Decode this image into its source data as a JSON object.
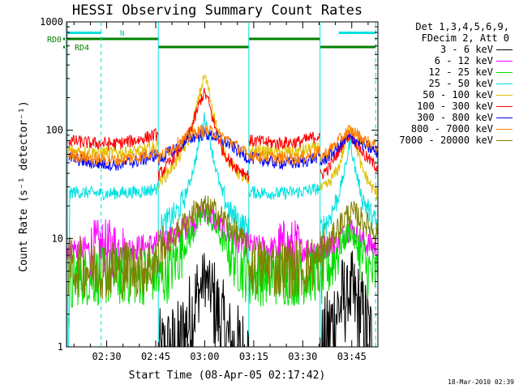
{
  "chart_data": {
    "type": "line",
    "title": "HESSI Observing Summary Count Rates",
    "xlabel": "Start Time (08-Apr-05 02:17:42)",
    "ylabel": "Count Rate (s⁻¹ detector⁻¹)",
    "yscale": "log",
    "ylim": [
      1,
      1000
    ],
    "xlim_minutes": [
      17.7,
      113.0
    ],
    "y_ticks": [
      "1",
      "10",
      "100",
      "1000"
    ],
    "x_ticks": [
      {
        "label": "02:30",
        "min": 30
      },
      {
        "label": "02:45",
        "min": 45
      },
      {
        "label": "03:00",
        "min": 60
      },
      {
        "label": "03:15",
        "min": 75
      },
      {
        "label": "03:30",
        "min": 90
      },
      {
        "label": "03:45",
        "min": 105
      }
    ],
    "legend": {
      "header_lines": [
        "Det 1,3,4,5,6,9,",
        "FDecim 2, Att 0"
      ],
      "position": "right, outside plot"
    },
    "series": [
      {
        "name": "3 - 6 keV",
        "color": "#000000",
        "segments": [
          [
            [
              45.8,
              0.8
            ],
            [
              52,
              1.0
            ],
            [
              56,
              2.0
            ],
            [
              60,
              4.5
            ],
            [
              64,
              2.0
            ],
            [
              68,
              1.0
            ],
            [
              73.5,
              0.8
            ]
          ],
          [
            [
              95.3,
              0.8
            ],
            [
              100,
              2.0
            ],
            [
              104,
              3.2
            ],
            [
              108,
              2.0
            ],
            [
              112.2,
              0.9
            ]
          ]
        ]
      },
      {
        "name": "6 - 12 keV",
        "color": "#ff00ff",
        "segments": [
          [
            [
              17.9,
              8.2
            ],
            [
              25,
              8.0
            ],
            [
              35,
              8.0
            ],
            [
              42,
              8.5
            ],
            [
              45.8,
              9.0
            ]
          ],
          [
            [
              45.8,
              9.0
            ],
            [
              50,
              10.5
            ],
            [
              55,
              13
            ],
            [
              59,
              17
            ],
            [
              60.5,
              18
            ],
            [
              63,
              15
            ],
            [
              67,
              11
            ],
            [
              72,
              9.0
            ],
            [
              75,
              8.3
            ],
            [
              82,
              8.0
            ],
            [
              89,
              8.0
            ],
            [
              95.3,
              8.2
            ]
          ],
          [
            [
              95.3,
              8.2
            ],
            [
              100,
              9.0
            ],
            [
              103,
              11
            ],
            [
              104.5,
              13
            ],
            [
              106,
              11
            ],
            [
              109,
              9.0
            ],
            [
              113,
              8.3
            ]
          ]
        ]
      },
      {
        "name": "12 - 25 keV",
        "color": "#00e000",
        "segments": [
          [
            [
              18.3,
              2.0
            ],
            [
              19,
              3.0
            ],
            [
              20,
              4.5
            ],
            [
              30,
              4.5
            ],
            [
              40,
              4.5
            ],
            [
              45.8,
              4.8
            ]
          ],
          [
            [
              45.8,
              4.0
            ],
            [
              48,
              4.5
            ],
            [
              52,
              7
            ],
            [
              56,
              11
            ],
            [
              59,
              16
            ],
            [
              60.5,
              18
            ],
            [
              62,
              15
            ],
            [
              66,
              9
            ],
            [
              70,
              6
            ],
            [
              73.5,
              4.5
            ]
          ],
          [
            [
              73.5,
              4.5
            ],
            [
              82,
              4.5
            ],
            [
              89,
              4.5
            ],
            [
              95.3,
              5.0
            ]
          ],
          [
            [
              95.3,
              4.0
            ],
            [
              99,
              6
            ],
            [
              102,
              9
            ],
            [
              104.5,
              12
            ],
            [
              107,
              8
            ],
            [
              110,
              5
            ],
            [
              113,
              4.5
            ]
          ]
        ]
      },
      {
        "name": "25 - 50 keV",
        "color": "#00e0e0",
        "segments": [
          [
            [
              18.3,
              1.0
            ],
            [
              18.7,
              25
            ],
            [
              19.5,
              27
            ],
            [
              30,
              26
            ],
            [
              40,
              27
            ],
            [
              45.8,
              29
            ]
          ],
          [
            [
              45.8,
              12
            ],
            [
              48,
              14
            ],
            [
              52,
              18
            ],
            [
              55,
              30
            ],
            [
              57,
              50
            ],
            [
              59,
              100
            ],
            [
              60,
              135
            ],
            [
              61,
              100
            ],
            [
              63,
              50
            ],
            [
              65,
              28
            ],
            [
              68,
              17
            ],
            [
              73.5,
              12
            ]
          ],
          [
            [
              73.5,
              27
            ],
            [
              82,
              26
            ],
            [
              89,
              27
            ],
            [
              95.3,
              29
            ]
          ],
          [
            [
              95.3,
              12
            ],
            [
              98,
              15
            ],
            [
              101,
              25
            ],
            [
              103,
              45
            ],
            [
              104.5,
              80
            ],
            [
              106,
              45
            ],
            [
              108,
              25
            ],
            [
              111,
              16
            ],
            [
              113,
              13
            ]
          ]
        ]
      },
      {
        "name": "50 - 100 keV",
        "color": "#e0c000",
        "segments": [
          [
            [
              18.3,
              65
            ],
            [
              25,
              63
            ],
            [
              35,
              62
            ],
            [
              42,
              66
            ],
            [
              45.8,
              72
            ]
          ],
          [
            [
              45.8,
              32
            ],
            [
              48,
              38
            ],
            [
              52,
              55
            ],
            [
              55,
              80
            ],
            [
              57,
              140
            ],
            [
              59,
              250
            ],
            [
              60,
              320
            ],
            [
              61,
              250
            ],
            [
              63,
              130
            ],
            [
              65,
              75
            ],
            [
              68,
              48
            ],
            [
              73.5,
              32
            ]
          ],
          [
            [
              73.5,
              65
            ],
            [
              82,
              63
            ],
            [
              89,
              64
            ],
            [
              95.3,
              70
            ]
          ],
          [
            [
              95.3,
              28
            ],
            [
              98,
              32
            ],
            [
              101,
              45
            ],
            [
              103,
              75
            ],
            [
              104.5,
              110
            ],
            [
              106,
              80
            ],
            [
              108,
              45
            ],
            [
              111,
              30
            ],
            [
              113,
              25
            ]
          ]
        ]
      },
      {
        "name": "100 - 300 keV",
        "color": "#ff0000",
        "segments": [
          [
            [
              18.3,
              80
            ],
            [
              25,
              76
            ],
            [
              33,
              75
            ],
            [
              40,
              82
            ],
            [
              45.8,
              92
            ]
          ],
          [
            [
              45.8,
              38
            ],
            [
              48,
              45
            ],
            [
              52,
              65
            ],
            [
              55,
              90
            ],
            [
              57,
              130
            ],
            [
              59,
              200
            ],
            [
              60,
              220
            ],
            [
              61,
              190
            ],
            [
              63,
              110
            ],
            [
              65,
              70
            ],
            [
              68,
              50
            ],
            [
              73.5,
              38
            ]
          ],
          [
            [
              73.5,
              80
            ],
            [
              82,
              76
            ],
            [
              89,
              78
            ],
            [
              95.3,
              90
            ]
          ],
          [
            [
              95.3,
              38
            ],
            [
              98,
              45
            ],
            [
              101,
              65
            ],
            [
              103,
              85
            ],
            [
              104.5,
              90
            ],
            [
              106,
              80
            ],
            [
              109,
              58
            ],
            [
              113,
              45
            ]
          ]
        ]
      },
      {
        "name": "300 - 800 keV",
        "color": "#0000ff",
        "segments": [
          [
            [
              18.3,
              56
            ],
            [
              25,
              50
            ],
            [
              33,
              48
            ],
            [
              40,
              52
            ],
            [
              45.8,
              60
            ]
          ],
          [
            [
              45.8,
              52
            ],
            [
              49,
              62
            ],
            [
              53,
              75
            ],
            [
              57,
              88
            ],
            [
              60,
              92
            ],
            [
              63,
              88
            ],
            [
              67,
              76
            ],
            [
              71,
              62
            ],
            [
              73.5,
              55
            ]
          ],
          [
            [
              73.5,
              56
            ],
            [
              82,
              50
            ],
            [
              89,
              50
            ],
            [
              95.3,
              58
            ]
          ],
          [
            [
              95.3,
              50
            ],
            [
              98,
              58
            ],
            [
              101,
              70
            ],
            [
              104,
              85
            ],
            [
              106,
              82
            ],
            [
              109,
              72
            ],
            [
              113,
              62
            ]
          ]
        ]
      },
      {
        "name": "800 - 7000 keV",
        "color": "#ff8000",
        "segments": [
          [
            [
              18.3,
              60
            ],
            [
              25,
              55
            ],
            [
              33,
              53
            ],
            [
              40,
              57
            ],
            [
              45.8,
              66
            ]
          ],
          [
            [
              45.8,
              55
            ],
            [
              49,
              65
            ],
            [
              53,
              80
            ],
            [
              57,
              95
            ],
            [
              60,
              100
            ],
            [
              63,
              95
            ],
            [
              67,
              82
            ],
            [
              71,
              67
            ],
            [
              73.5,
              58
            ]
          ],
          [
            [
              73.5,
              60
            ],
            [
              82,
              55
            ],
            [
              89,
              55
            ],
            [
              95.3,
              63
            ]
          ],
          [
            [
              95.3,
              55
            ],
            [
              98,
              65
            ],
            [
              101,
              80
            ],
            [
              104,
              100
            ],
            [
              106,
              95
            ],
            [
              109,
              80
            ],
            [
              113,
              70
            ]
          ]
        ]
      },
      {
        "name": "7000 - 20000 keV",
        "color": "#808000",
        "segments": [
          [
            [
              18.3,
              5.5
            ],
            [
              25,
              5.3
            ],
            [
              35,
              5.2
            ],
            [
              42,
              5.5
            ],
            [
              45.8,
              6.0
            ]
          ],
          [
            [
              45.8,
              7.0
            ],
            [
              49,
              9
            ],
            [
              53,
              13
            ],
            [
              57,
              18
            ],
            [
              60,
              19.5
            ],
            [
              63,
              18
            ],
            [
              67,
              14
            ],
            [
              71,
              10
            ],
            [
              73.5,
              8.5
            ]
          ],
          [
            [
              73.5,
              5.5
            ],
            [
              82,
              5.3
            ],
            [
              89,
              5.3
            ],
            [
              95.3,
              6.0
            ]
          ],
          [
            [
              95.3,
              7.0
            ],
            [
              98,
              9
            ],
            [
              101,
              13
            ],
            [
              104,
              17
            ],
            [
              106,
              17
            ],
            [
              109,
              14
            ],
            [
              113,
              11
            ]
          ]
        ]
      }
    ],
    "vertical_markers": [
      {
        "min": 18.0,
        "color": "#00e0e0",
        "style": "solid"
      },
      {
        "min": 28.3,
        "color": "#00e0e0",
        "style": "dashed"
      },
      {
        "min": 45.8,
        "color": "#00e0e0",
        "style": "solid"
      },
      {
        "min": 73.5,
        "color": "#00e0e0",
        "style": "solid"
      },
      {
        "min": 95.3,
        "color": "#00e0e0",
        "style": "solid"
      },
      {
        "min": 112.3,
        "color": "#00e0e0",
        "style": "dashed"
      }
    ],
    "status_bars": {
      "labels": {
        "rd0": "RD0",
        "rd4": "RD4",
        "n": "N"
      },
      "cyan_top": [
        [
          18.0,
          28.3
        ],
        [
          101.0,
          112.3
        ]
      ],
      "green_upper": [
        [
          18.0,
          45.8
        ],
        [
          73.5,
          95.3
        ]
      ],
      "green_lower": [
        [
          45.8,
          73.5
        ],
        [
          95.3,
          112.3
        ]
      ]
    }
  },
  "footer": {
    "timestamp": "18-Mar-2010 02:39"
  }
}
